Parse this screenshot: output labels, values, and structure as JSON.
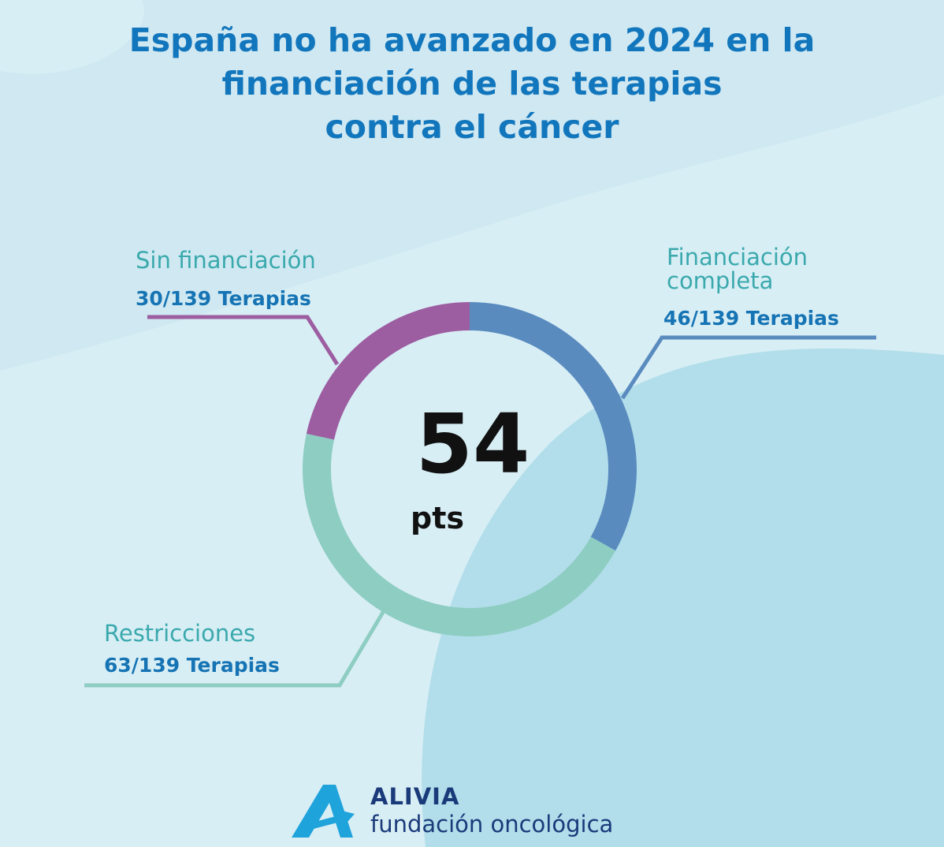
{
  "title": {
    "line1": "España no ha avanzado en 2024 en la",
    "line2": "financiación de las terapias",
    "line3": "contra el cáncer"
  },
  "chart_data": {
    "type": "pie",
    "style": "donut",
    "center_value": "54",
    "center_unit": "pts",
    "slices": [
      {
        "name": "Financiación completa",
        "name_lines": [
          "Financiación",
          "completa"
        ],
        "value": 46,
        "label": "46/139 Terapias",
        "color": "#5a8bbf",
        "name_color": "#3aa9ad"
      },
      {
        "name": "Restricciones",
        "name_lines": [
          "Restricciones"
        ],
        "value": 63,
        "label": "63/139 Terapias",
        "color": "#8ecdc2",
        "name_color": "#3aa9ad"
      },
      {
        "name": "Sin financiación",
        "name_lines": [
          "Sin financiación"
        ],
        "value": 30,
        "label": "30/139 Terapias",
        "color": "#9c5da1",
        "name_color": "#3aa9ad"
      }
    ],
    "total": 139
  },
  "logo": {
    "name": "ALIVIA",
    "subtitle": "fundación oncológica",
    "color": "#1fa3db"
  },
  "colors": {
    "title": "#1276bd",
    "background": "#d3ecf4"
  }
}
